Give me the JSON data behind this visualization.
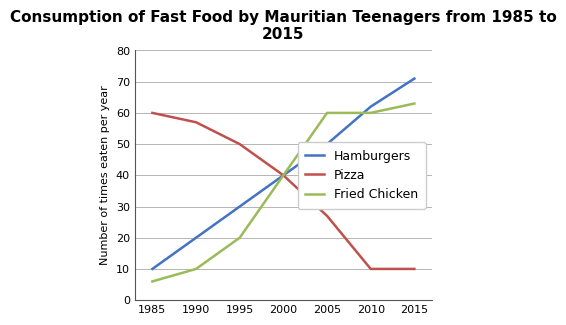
{
  "title": "Consumption of Fast Food by Mauritian Teenagers from 1985 to\n2015",
  "ylabel": "Number of times eaten per year",
  "years": [
    1985,
    1990,
    1995,
    2000,
    2005,
    2010,
    2015
  ],
  "hamburgers": [
    10,
    20,
    30,
    40,
    50,
    62,
    71
  ],
  "pizza": [
    60,
    57,
    50,
    40,
    27,
    10,
    10
  ],
  "fried_chicken": [
    6,
    10,
    20,
    40,
    60,
    60,
    63
  ],
  "hamburgers_color": "#4472C4",
  "pizza_color": "#C0504D",
  "fried_chicken_color": "#9BBB59",
  "ylim": [
    0,
    80
  ],
  "yticks": [
    0,
    10,
    20,
    30,
    40,
    50,
    60,
    70,
    80
  ],
  "xticks": [
    1985,
    1990,
    1995,
    2000,
    2005,
    2010,
    2015
  ],
  "legend_labels": [
    "Hamburgers",
    "Pizza",
    "Fried Chicken"
  ],
  "title_fontsize": 11,
  "axis_label_fontsize": 8,
  "tick_fontsize": 8,
  "legend_fontsize": 9,
  "linewidth": 1.8,
  "xlim": [
    1983,
    2017
  ],
  "background_color": "#ffffff"
}
